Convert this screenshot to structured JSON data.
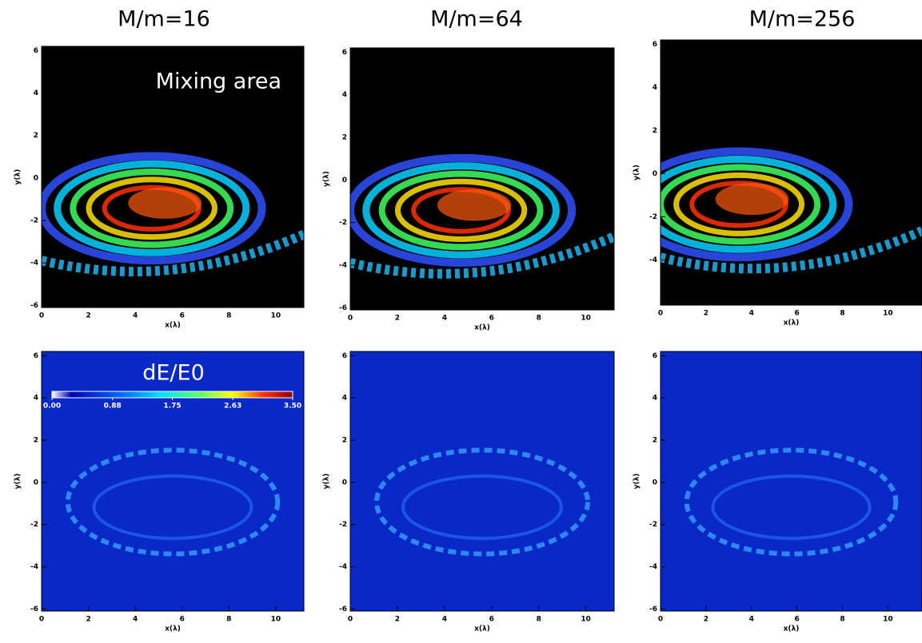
{
  "chart_data": [
    {
      "type": "heatmap",
      "title": "M/m=16",
      "annotation": "Mixing area",
      "xlabel": "x(λ)",
      "ylabel": "y(λ)",
      "xlim": [
        0,
        11.2
      ],
      "ylim": [
        -6.1,
        6.2
      ],
      "xticks": [
        0,
        2,
        4,
        6,
        8,
        10
      ],
      "yticks": [
        -6,
        -4,
        -2,
        0,
        2,
        4,
        6
      ]
    },
    {
      "type": "heatmap",
      "title": "M/m=64",
      "xlabel": "x(λ)",
      "ylabel": "y(λ)",
      "xlim": [
        0,
        11.2
      ],
      "ylim": [
        -6.1,
        6.2
      ],
      "xticks": [
        0,
        2,
        4,
        6,
        8,
        10
      ],
      "yticks": [
        -6,
        -4,
        -2,
        0,
        2,
        4,
        6
      ]
    },
    {
      "type": "heatmap",
      "title": "M/m=256",
      "xlabel": "x(λ)",
      "ylabel": "y(λ)",
      "xlim": [
        0,
        11.5
      ],
      "ylim": [
        -6.1,
        6.2
      ],
      "xticks": [
        0,
        2,
        4,
        6,
        8,
        10
      ],
      "yticks": [
        -4,
        -2,
        0,
        2,
        4,
        6
      ]
    },
    {
      "type": "heatmap",
      "annotation": "dE/E0",
      "xlabel": "x(λ)",
      "ylabel": "y(λ)",
      "xlim": [
        0,
        11.2
      ],
      "ylim": [
        -6.1,
        6.2
      ],
      "xticks": [
        0,
        2,
        4,
        6,
        8,
        10
      ],
      "yticks": [
        -6,
        -4,
        -2,
        0,
        2,
        4,
        6
      ],
      "colorbar": {
        "lim": [
          0,
          3.5
        ],
        "ticks": [
          {
            "value": 0,
            "label": "0.00"
          },
          {
            "value": 0.88,
            "label": "0.88"
          },
          {
            "value": 1.75,
            "label": "1.75"
          },
          {
            "value": 2.63,
            "label": "2.63"
          },
          {
            "value": 3.5,
            "label": "3.50"
          }
        ]
      }
    },
    {
      "type": "heatmap",
      "xlabel": "x(λ)",
      "ylabel": "y(λ)",
      "xlim": [
        0,
        11.2
      ],
      "ylim": [
        -6.1,
        6.2
      ],
      "xticks": [
        0,
        2,
        4,
        6,
        8,
        10
      ],
      "yticks": [
        -6,
        -4,
        -2,
        0,
        2,
        4,
        6
      ]
    },
    {
      "type": "heatmap",
      "xlabel": "x(λ)",
      "ylabel": "y(λ)",
      "xlim": [
        0,
        11.5
      ],
      "ylim": [
        -6.1,
        6.2
      ],
      "xticks": [
        0,
        2,
        4,
        6,
        8,
        10
      ],
      "yticks": [
        -6,
        -4,
        -2,
        0,
        2,
        4,
        6
      ]
    }
  ]
}
